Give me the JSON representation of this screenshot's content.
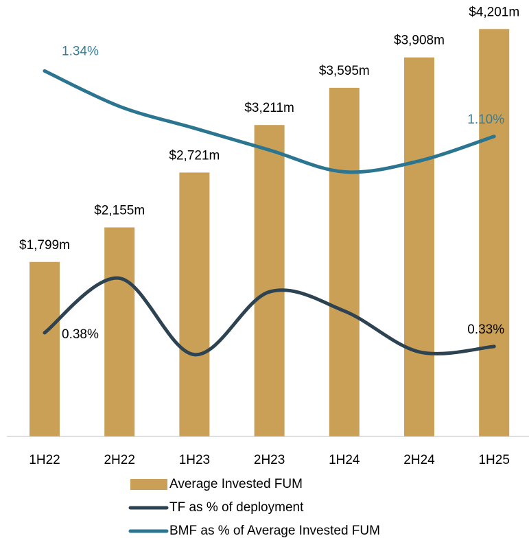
{
  "chart_data": {
    "type": "bar",
    "categories": [
      "1H22",
      "2H22",
      "1H23",
      "2H23",
      "1H24",
      "2H24",
      "1H25"
    ],
    "ylim": [
      0,
      4500
    ],
    "y2lim": [
      0,
      1.6
    ],
    "series": [
      {
        "name": "Average Invested FUM",
        "type": "bar",
        "color": "#c9a055",
        "values": [
          1799,
          2155,
          2721,
          3211,
          3595,
          3908,
          4201
        ],
        "value_labels": [
          "$1,799m",
          "$2,155m",
          "$2,721m",
          "$3,211m",
          "$3,595m",
          "$3,908m",
          "$4,201m"
        ]
      },
      {
        "name": "TF as % of deployment",
        "type": "line",
        "axis": "y2",
        "color": "#2e4352",
        "values": [
          0.38,
          0.58,
          0.3,
          0.53,
          0.46,
          0.31,
          0.33
        ],
        "value_labels": [
          "0.38%",
          null,
          null,
          null,
          null,
          null,
          "0.33%"
        ],
        "label_color": "#000000"
      },
      {
        "name": "BMF as % of Average Invested FUM",
        "type": "line",
        "axis": "y2",
        "color": "#2b7590",
        "values": [
          1.34,
          1.21,
          1.13,
          1.05,
          0.97,
          1.01,
          1.1
        ],
        "value_labels": [
          "1.34%",
          null,
          null,
          null,
          null,
          null,
          "1.10%"
        ],
        "label_color": "#3a7d98"
      }
    ],
    "legend": "bottom"
  }
}
